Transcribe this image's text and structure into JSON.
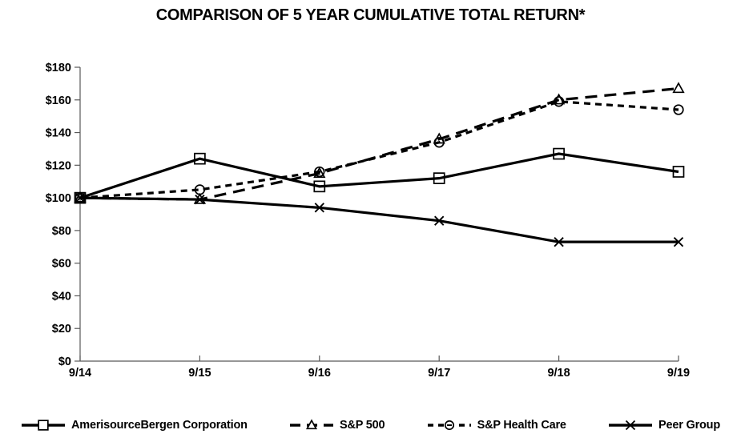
{
  "title": "COMPARISON OF 5 YEAR CUMULATIVE TOTAL RETURN*",
  "colors": {
    "series_line": "#000000",
    "axis_line": "#595959",
    "text": "#000000",
    "background": "#ffffff"
  },
  "chart_data": {
    "type": "line",
    "title": "COMPARISON OF 5 YEAR CUMULATIVE TOTAL RETURN*",
    "xlabel": "",
    "ylabel": "",
    "grid": false,
    "legend_position": "bottom",
    "categories": [
      "9/14",
      "9/15",
      "9/16",
      "9/17",
      "9/18",
      "9/19"
    ],
    "y_axis": {
      "ylim": [
        0,
        180
      ],
      "tick_values": [
        0,
        20,
        40,
        60,
        80,
        100,
        120,
        140,
        160,
        180
      ],
      "tick_labels": [
        "$0",
        "$20",
        "$40",
        "$60",
        "$80",
        "$100",
        "$120",
        "$140",
        "$160",
        "$180"
      ]
    },
    "series": [
      {
        "name": "AmerisourceBergen Corporation",
        "marker": "square",
        "dash": "solid",
        "values": [
          100,
          124,
          107,
          112,
          127,
          116
        ]
      },
      {
        "name": "S&P 500",
        "marker": "triangle",
        "dash": "long-dash",
        "values": [
          100,
          99,
          115,
          136,
          160,
          167
        ]
      },
      {
        "name": "S&P Health Care",
        "marker": "circle",
        "dash": "dash",
        "values": [
          100,
          105,
          116,
          134,
          159,
          154
        ]
      },
      {
        "name": "Peer Group",
        "marker": "x",
        "dash": "solid",
        "values": [
          100,
          99,
          94,
          86,
          73,
          73
        ]
      }
    ]
  }
}
